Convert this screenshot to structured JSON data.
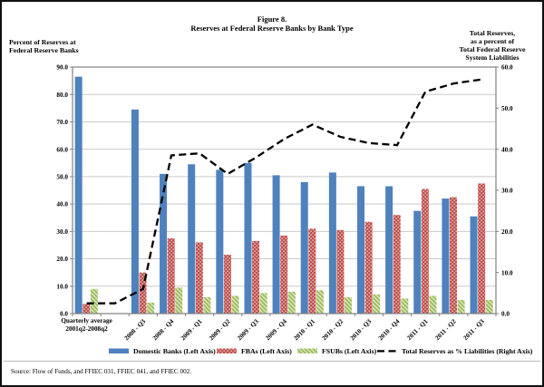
{
  "figure": {
    "title_line1": "Figure 8.",
    "title_line2": "Reserves at Federal Reserve Banks by Bank Type",
    "left_axis_title": "Percent of Reserves at\nFederal Reserve Banks",
    "right_axis_title": "Total Reserves,\nas a percent of\nTotal Federal Reserve\nSystem Liabilities",
    "source": "Source: Flow of Funds, and FFIEC 031, FFIEC 041, and FFIEC 002."
  },
  "chart_data": {
    "type": "bar+line",
    "title": "Figure 8. Reserves at Federal Reserve Banks by Bank Type",
    "categories": [
      "Quarterly average\n2001q2-2008q2",
      "",
      "2008 - Q3",
      "2008 - Q4",
      "2009 - Q1",
      "2009 - Q2",
      "2009 - Q3",
      "2009 - Q4",
      "2010 - Q1",
      "2010 - Q2",
      "2010 - Q3",
      "2010 - Q4",
      "2011 - Q1",
      "2011 - Q2",
      "2011 - Q3"
    ],
    "series": [
      {
        "name": "Domestic Banks (Left Axis)",
        "type": "bar",
        "axis": "left",
        "color": "#4F81BD",
        "pattern": "solid",
        "values": [
          86.5,
          null,
          74.5,
          51,
          54.5,
          52.5,
          55,
          50.5,
          48,
          51.5,
          46.5,
          46.5,
          37.5,
          42,
          35.5
        ]
      },
      {
        "name": "FBAs (Left Axis)",
        "type": "bar",
        "axis": "left",
        "color": "#C0504D",
        "pattern": "dots",
        "values": [
          3.5,
          null,
          15,
          27.5,
          26,
          21.5,
          26.5,
          28.5,
          31,
          30.5,
          33.5,
          36,
          45.5,
          42.5,
          47.5
        ]
      },
      {
        "name": "FSUBs (Left Axis)",
        "type": "bar",
        "axis": "left",
        "color": "#9BBB59",
        "pattern": "hatch",
        "values": [
          9,
          null,
          4,
          9.5,
          6,
          6.5,
          7.5,
          8,
          8.5,
          6,
          7,
          5.5,
          6.5,
          5,
          5
        ]
      },
      {
        "name": "Total Reserves as % Liabilities (Right Axis)",
        "type": "line",
        "axis": "right",
        "color": "#000000",
        "dashed": true,
        "values": [
          2.5,
          2.5,
          6,
          38.5,
          39,
          34,
          38,
          42.5,
          46,
          43,
          41.5,
          41,
          54,
          56,
          57
        ]
      }
    ],
    "left_axis": {
      "min": 0,
      "max": 90,
      "step": 10,
      "tick_format": "one-decimal"
    },
    "right_axis": {
      "min": 0,
      "max": 60,
      "step": 10,
      "tick_format": "one-decimal"
    },
    "grid": true,
    "legend_position": "bottom",
    "colors": {
      "grid": "#C9C9C9",
      "frame": "#808080",
      "red_dot_light": "#E9C2C0",
      "green_hatch_light": "#DCE8C5"
    }
  }
}
